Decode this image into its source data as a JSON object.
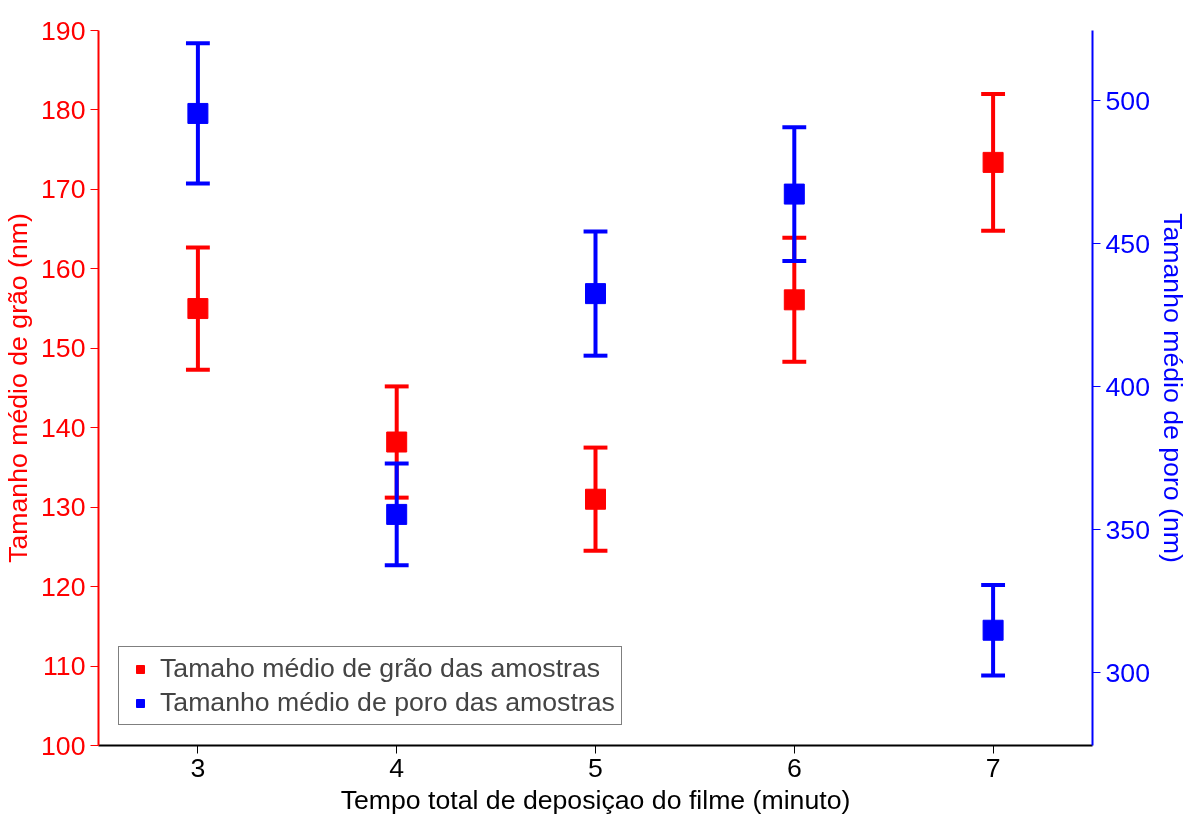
{
  "chart_data": {
    "type": "scatter",
    "xlabel": "Tempo total de deposiçao do filme (minuto)",
    "ylabel": "Tamanho médio de grão (nm)",
    "y2label": "Tamanho médio de poro (nm)",
    "x": [
      3,
      4,
      5,
      6,
      7
    ],
    "series": [
      {
        "name": "Tamaho médio de grão das amostras",
        "color": "#ff0000",
        "values": [
          155.0,
          138.2,
          131.0,
          156.1,
          173.4
        ],
        "errors": [
          7.7,
          7,
          6.5,
          7.8,
          8.6
        ]
      },
      {
        "name": "Tamanho médio de poro das amostras",
        "color": "#0000ff",
        "axis": "y2",
        "values": [
          495.5,
          355.3,
          432.5,
          467.3,
          314.8
        ],
        "errors": [
          24.5,
          17.8,
          21.7,
          23.4,
          15.8
        ]
      }
    ],
    "xlim": [
      2.5,
      7.5
    ],
    "xticks": [
      3,
      4,
      5,
      6,
      7
    ],
    "ylim": [
      100,
      190
    ],
    "yticks": [
      100,
      110,
      120,
      130,
      140,
      150,
      160,
      170,
      180,
      190
    ],
    "y2lim": [
      274.5,
      524.5
    ],
    "y2ticks": [
      300,
      350,
      400,
      450,
      500
    ],
    "marker": "square",
    "grid": false,
    "legend": "bottom left"
  }
}
